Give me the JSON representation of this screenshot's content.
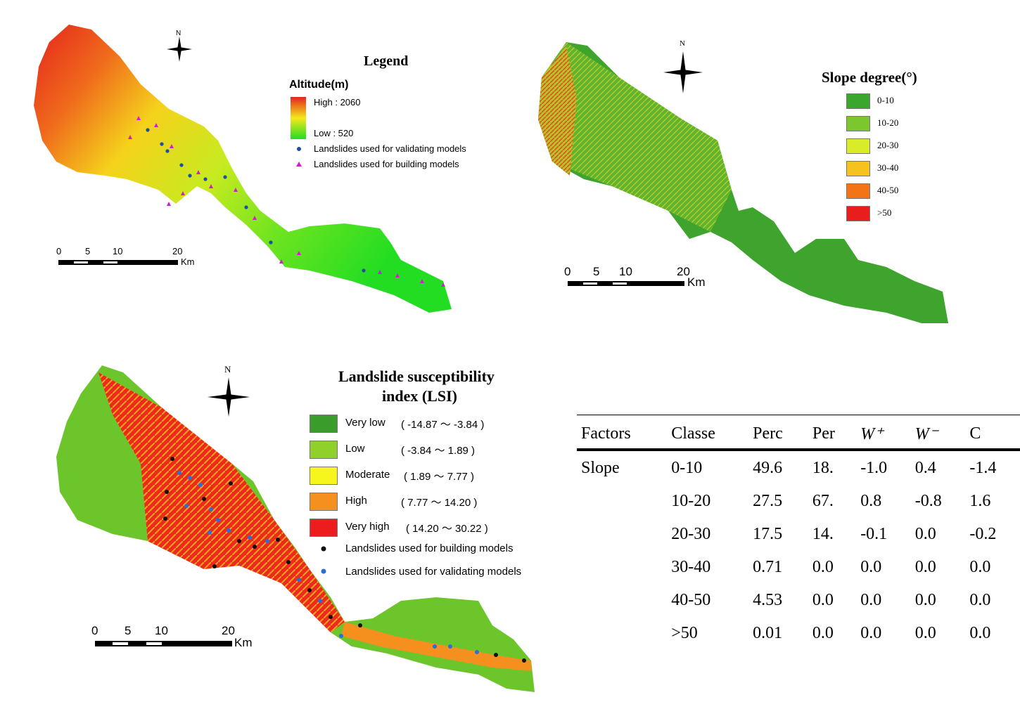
{
  "map1": {
    "north": "N",
    "legend_title": "Legend",
    "altitude_title": "Altitude(m)",
    "high_label": "High : 2060",
    "low_label": "Low : 520",
    "validating_label": "Landslides used for validating models",
    "building_label": "Landslides used for building models",
    "scale_ticks": [
      "0",
      "5",
      "10",
      "20"
    ],
    "scale_unit": "Km",
    "colors": {
      "high": "#e8231d",
      "mid": "#f5e81c",
      "low": "#22dd22",
      "validating": "#1c4fa3",
      "building": "#d01fc9"
    }
  },
  "map2": {
    "north": "N",
    "legend_title": "Slope degree(°)",
    "classes": [
      {
        "label": "0-10",
        "color": "#3aa62e"
      },
      {
        "label": "10-20",
        "color": "#7cc72e"
      },
      {
        "label": "20-30",
        "color": "#d8ec2a"
      },
      {
        "label": "30-40",
        "color": "#f6c21e"
      },
      {
        "label": ">50",
        "color": "#e81e1e"
      }
    ],
    "class_40_50": {
      "label": "40-50",
      "color": "#f37417"
    },
    "scale_ticks": [
      "0",
      "5",
      "10",
      "20"
    ],
    "scale_unit": "Km"
  },
  "map3": {
    "north": "N",
    "legend_title_line1": "Landslide susceptibility",
    "legend_title_line2": "index (LSI)",
    "classes": [
      {
        "name": "Very low",
        "range": "( -14.87 ～ -3.84 )",
        "color": "#3a9c2b"
      },
      {
        "name": "Low",
        "range": "( -3.84 ～ 1.89 )",
        "color": "#8fd12a"
      },
      {
        "name": "Moderate",
        "range": "( 1.89 ～ 7.77 )",
        "color": "#f6f51c"
      },
      {
        "name": "High",
        "range": "( 7.77 ～ 14.20 )",
        "color": "#f5901f"
      },
      {
        "name": "Very high",
        "range": "( 14.20 ～ 30.22 )",
        "color": "#ee1d1d"
      }
    ],
    "building_label": "Landslides used for building models",
    "validating_label": "Landslides used for validating models",
    "scale_ticks": [
      "0",
      "5",
      "10",
      "20"
    ],
    "scale_unit": "Km",
    "colors": {
      "building": "#111111",
      "validating": "#2b6fd6"
    }
  },
  "table": {
    "headers": [
      "Factors",
      "Classe",
      "Perc",
      "Per",
      "W⁺",
      "W⁻",
      "C"
    ],
    "rows": [
      [
        "Slope",
        "0-10",
        "49.6",
        "18.",
        "-1.0",
        "0.4",
        "-1.4"
      ],
      [
        "",
        "10-20",
        "27.5",
        "67.",
        "0.8",
        "-0.8",
        "1.6"
      ],
      [
        "",
        "20-30",
        "17.5",
        "14.",
        "-0.1",
        "0.0",
        "-0.2"
      ],
      [
        "",
        "30-40",
        "0.71",
        "0.0",
        "0.0",
        "0.0",
        "0.0"
      ],
      [
        "",
        "40-50",
        "4.53",
        "0.0",
        "0.0",
        "0.0",
        "0.0"
      ],
      [
        "",
        ">50",
        "0.01",
        "0.0",
        "0.0",
        "0.0",
        "0.0"
      ]
    ]
  }
}
